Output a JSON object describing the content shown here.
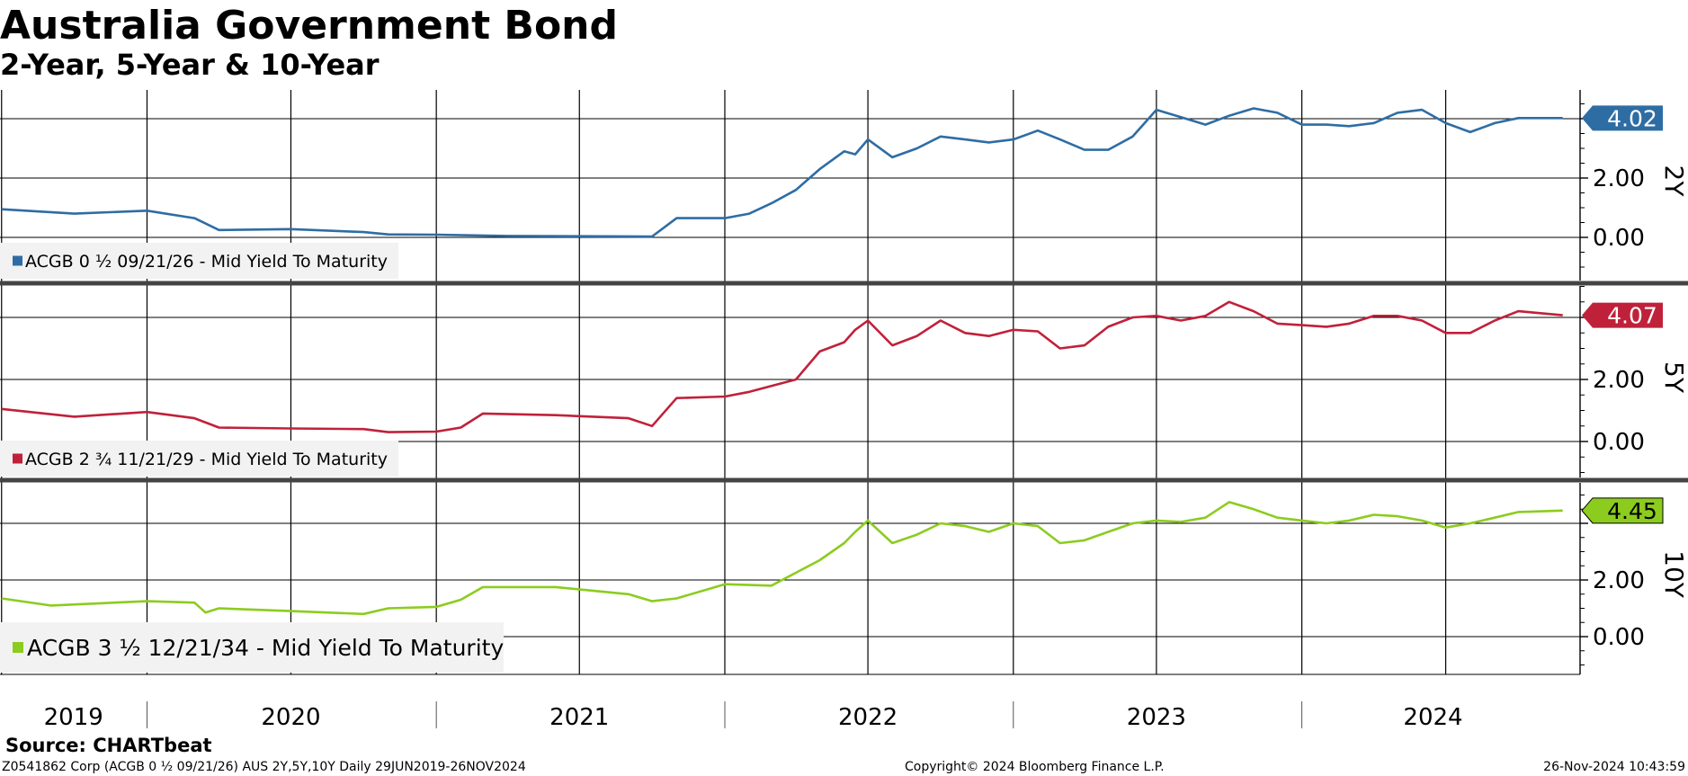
{
  "header": {
    "title": "Australia Government Bond",
    "subtitle": "2-Year, 5-Year & 10-Year"
  },
  "footer": {
    "source": "Source: CHARTbeat",
    "security": "Z0541862 Corp (ACGB 0 ½ 09/21/26) AUS 2Y,5Y,10Y  Daily 29JUN2019-26NOV2024",
    "copyright": "Copyright© 2024 Bloomberg Finance L.P.",
    "timestamp": "26-Nov-2024 10:43:59"
  },
  "chart_data": [
    {
      "type": "line",
      "panel_label": "2Y",
      "x_labels": [
        "2019",
        "2020",
        "2021",
        "2022",
        "2023",
        "2024"
      ],
      "yticks": [
        "2.00",
        "0.00"
      ],
      "ylim": [
        -0.8,
        5.0
      ],
      "legend_text": "ACGB 0 ½ 09/21/26 - Mid Yield To Maturity",
      "last_value_label": "4.02",
      "color": "#2e6da4",
      "series": [
        {
          "name": "ACGB 0 ½ 09/21/26 - Mid Yield To Maturity",
          "x": [
            "2019-07-01",
            "2019-10-01",
            "2020-01-01",
            "2020-03-01",
            "2020-04-01",
            "2020-07-01",
            "2020-10-01",
            "2020-11-01",
            "2021-01-01",
            "2021-04-01",
            "2021-07-01",
            "2021-10-01",
            "2021-11-01",
            "2022-01-01",
            "2022-02-01",
            "2022-03-01",
            "2022-04-01",
            "2022-05-01",
            "2022-06-01",
            "2022-06-15",
            "2022-07-01",
            "2022-08-01",
            "2022-09-01",
            "2022-10-01",
            "2022-11-01",
            "2022-12-01",
            "2023-01-01",
            "2023-02-01",
            "2023-03-01",
            "2023-04-01",
            "2023-05-01",
            "2023-06-01",
            "2023-07-01",
            "2023-08-01",
            "2023-09-01",
            "2023-10-01",
            "2023-11-01",
            "2023-12-01",
            "2024-01-01",
            "2024-02-01",
            "2024-03-01",
            "2024-04-01",
            "2024-05-01",
            "2024-06-01",
            "2024-07-01",
            "2024-08-01",
            "2024-09-01",
            "2024-10-01",
            "2024-11-26"
          ],
          "y": [
            0.95,
            0.8,
            0.9,
            0.65,
            0.25,
            0.28,
            0.18,
            0.1,
            0.09,
            0.05,
            0.04,
            0.03,
            0.65,
            0.65,
            0.8,
            1.15,
            1.6,
            2.3,
            2.9,
            2.8,
            3.3,
            2.7,
            3.0,
            3.4,
            3.3,
            3.2,
            3.3,
            3.6,
            3.3,
            2.95,
            2.95,
            3.4,
            4.3,
            4.05,
            3.8,
            4.1,
            4.35,
            4.2,
            3.8,
            3.8,
            3.75,
            3.85,
            4.2,
            4.3,
            3.85,
            3.55,
            3.85,
            4.02,
            4.02
          ]
        }
      ]
    },
    {
      "type": "line",
      "panel_label": "5Y",
      "x_labels": [
        "2019",
        "2020",
        "2021",
        "2022",
        "2023",
        "2024"
      ],
      "yticks": [
        "2.00",
        "0.00"
      ],
      "ylim": [
        -1.2,
        5.2
      ],
      "legend_text": "ACGB 2 ¾ 11/21/29 - Mid Yield To Maturity",
      "last_value_label": "4.07",
      "color": "#c0213a",
      "series": [
        {
          "name": "ACGB 2 ¾ 11/21/29 - Mid Yield To Maturity",
          "x": [
            "2019-07-01",
            "2019-10-01",
            "2020-01-01",
            "2020-03-01",
            "2020-04-01",
            "2020-07-01",
            "2020-10-01",
            "2020-11-01",
            "2021-01-01",
            "2021-02-01",
            "2021-03-01",
            "2021-06-01",
            "2021-09-01",
            "2021-10-01",
            "2021-11-01",
            "2022-01-01",
            "2022-02-01",
            "2022-04-01",
            "2022-05-01",
            "2022-06-01",
            "2022-06-15",
            "2022-07-01",
            "2022-08-01",
            "2022-09-01",
            "2022-10-01",
            "2022-11-01",
            "2022-12-01",
            "2023-01-01",
            "2023-02-01",
            "2023-03-01",
            "2023-04-01",
            "2023-05-01",
            "2023-06-01",
            "2023-07-01",
            "2023-08-01",
            "2023-09-01",
            "2023-10-01",
            "2023-11-01",
            "2023-12-01",
            "2024-01-01",
            "2024-02-01",
            "2024-03-01",
            "2024-04-01",
            "2024-05-01",
            "2024-06-01",
            "2024-07-01",
            "2024-08-01",
            "2024-09-01",
            "2024-10-01",
            "2024-11-26"
          ],
          "y": [
            1.05,
            0.8,
            0.95,
            0.75,
            0.45,
            0.42,
            0.4,
            0.3,
            0.32,
            0.45,
            0.9,
            0.85,
            0.75,
            0.5,
            1.4,
            1.45,
            1.6,
            2.0,
            2.9,
            3.2,
            3.6,
            3.9,
            3.1,
            3.4,
            3.9,
            3.5,
            3.4,
            3.6,
            3.55,
            3.0,
            3.1,
            3.7,
            4.0,
            4.05,
            3.9,
            4.05,
            4.5,
            4.2,
            3.8,
            3.75,
            3.7,
            3.8,
            4.05,
            4.05,
            3.9,
            3.5,
            3.5,
            3.9,
            4.2,
            4.07
          ]
        }
      ]
    },
    {
      "type": "line",
      "panel_label": "10Y",
      "x_labels": [
        "2019",
        "2020",
        "2021",
        "2022",
        "2023",
        "2024"
      ],
      "yticks": [
        "2.00",
        "0.00"
      ],
      "ylim": [
        -1.2,
        5.2
      ],
      "legend_text": "ACGB 3 ½ 12/21/34 - Mid Yield To Maturity",
      "last_value_label": "4.45",
      "color": "#8ccc1e",
      "series": [
        {
          "name": "ACGB 3 ½ 12/21/34 - Mid Yield To Maturity",
          "x": [
            "2019-07-01",
            "2019-09-01",
            "2020-01-01",
            "2020-03-01",
            "2020-03-15",
            "2020-04-01",
            "2020-07-01",
            "2020-10-01",
            "2020-11-01",
            "2021-01-01",
            "2021-02-01",
            "2021-03-01",
            "2021-06-01",
            "2021-09-01",
            "2021-10-01",
            "2021-11-01",
            "2022-01-01",
            "2022-03-01",
            "2022-05-01",
            "2022-06-01",
            "2022-06-15",
            "2022-07-01",
            "2022-08-01",
            "2022-09-01",
            "2022-10-01",
            "2022-11-01",
            "2022-12-01",
            "2023-01-01",
            "2023-02-01",
            "2023-03-01",
            "2023-04-01",
            "2023-05-01",
            "2023-06-01",
            "2023-07-01",
            "2023-08-01",
            "2023-09-01",
            "2023-10-01",
            "2023-11-01",
            "2023-12-01",
            "2024-01-01",
            "2024-02-01",
            "2024-03-01",
            "2024-04-01",
            "2024-05-01",
            "2024-06-01",
            "2024-07-01",
            "2024-08-01",
            "2024-09-01",
            "2024-10-01",
            "2024-11-26"
          ],
          "y": [
            1.35,
            1.1,
            1.25,
            1.2,
            0.85,
            1.0,
            0.9,
            0.8,
            1.0,
            1.05,
            1.3,
            1.75,
            1.75,
            1.5,
            1.25,
            1.35,
            1.85,
            1.8,
            2.7,
            3.3,
            3.7,
            4.1,
            3.3,
            3.6,
            4.0,
            3.9,
            3.7,
            4.0,
            3.9,
            3.3,
            3.4,
            3.7,
            4.0,
            4.1,
            4.05,
            4.2,
            4.75,
            4.5,
            4.2,
            4.1,
            4.0,
            4.1,
            4.3,
            4.25,
            4.1,
            3.85,
            4.0,
            4.2,
            4.4,
            4.45
          ]
        }
      ]
    }
  ]
}
